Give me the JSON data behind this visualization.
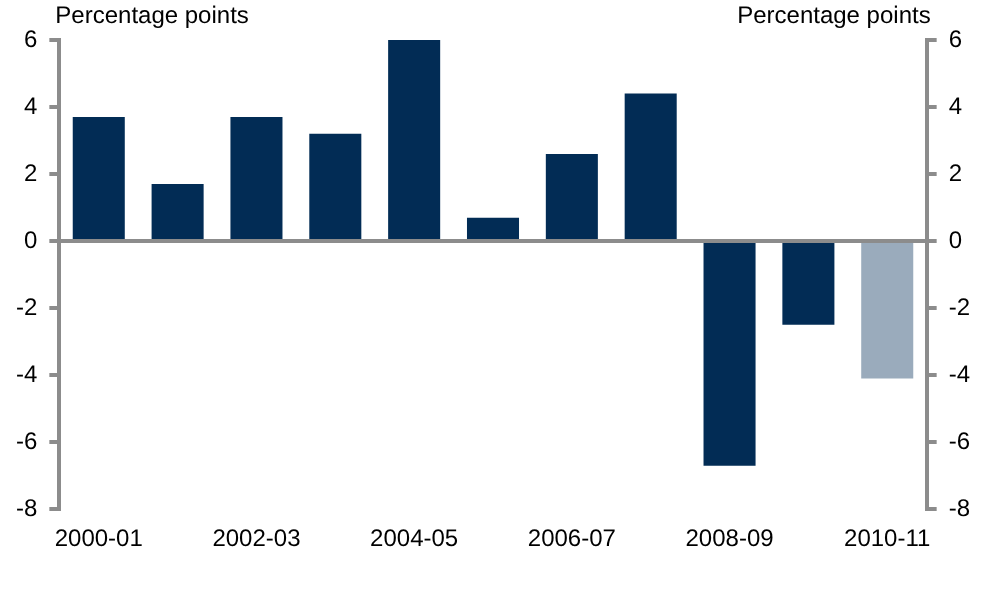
{
  "chart_data": {
    "type": "bar",
    "categories": [
      "2000-01",
      null,
      "2002-03",
      null,
      "2004-05",
      null,
      "2006-07",
      null,
      "2008-09",
      null,
      "2010-11"
    ],
    "values": [
      3.7,
      1.7,
      3.7,
      3.2,
      6.0,
      0.7,
      2.6,
      4.4,
      -6.7,
      -2.5,
      -4.1
    ],
    "colors": [
      "#022c55",
      "#022c55",
      "#022c55",
      "#022c55",
      "#022c55",
      "#022c55",
      "#022c55",
      "#022c55",
      "#022c55",
      "#022c55",
      "#9aabbc"
    ],
    "ylabel": "Percentage points",
    "y2label": "Percentage points",
    "ylim": [
      -8,
      6
    ],
    "yticks": [
      -8,
      -6,
      -4,
      -2,
      0,
      2,
      4,
      6
    ],
    "y2lim": [
      -8,
      6
    ],
    "y2ticks": [
      -8,
      -6,
      -4,
      -2,
      0,
      2,
      4,
      6
    ],
    "grid": false,
    "legend": false
  }
}
